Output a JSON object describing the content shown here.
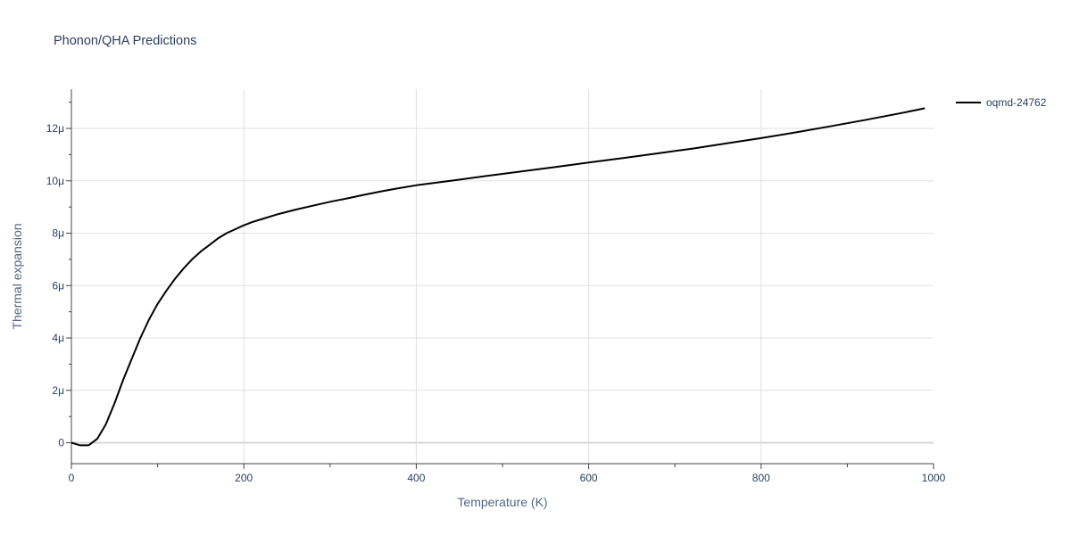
{
  "chart_data": {
    "type": "line",
    "title": "Phonon/QHA Predictions",
    "xlabel": "Temperature (K)",
    "ylabel": "Thermal expansion",
    "xlim": [
      0,
      1000
    ],
    "ylim": [
      -0.8,
      13.5
    ],
    "ylim_units": "micro (×1e-6)",
    "x_ticks": [
      0,
      200,
      400,
      600,
      800,
      1000
    ],
    "x_tick_labels": [
      "0",
      "200",
      "400",
      "600",
      "800",
      "1000"
    ],
    "y_ticks": [
      0,
      2,
      4,
      6,
      8,
      10,
      12
    ],
    "y_tick_labels": [
      "0",
      "2μ",
      "4μ",
      "6μ",
      "8μ",
      "10μ",
      "12μ"
    ],
    "grid": true,
    "legend_position": "top-right",
    "line_color": "#000000",
    "series": [
      {
        "name": "oqmd-24762",
        "x": [
          0,
          10,
          20,
          30,
          40,
          50,
          60,
          70,
          80,
          90,
          100,
          110,
          120,
          130,
          140,
          150,
          160,
          170,
          180,
          190,
          200,
          210,
          220,
          240,
          260,
          280,
          300,
          320,
          340,
          360,
          380,
          400,
          440,
          480,
          520,
          560,
          600,
          640,
          680,
          720,
          760,
          800,
          840,
          880,
          920,
          960,
          990
        ],
        "y": [
          0.0,
          -0.1,
          -0.1,
          0.15,
          0.7,
          1.5,
          2.4,
          3.2,
          4.0,
          4.7,
          5.3,
          5.8,
          6.25,
          6.65,
          7.0,
          7.3,
          7.55,
          7.8,
          8.0,
          8.15,
          8.3,
          8.43,
          8.53,
          8.73,
          8.9,
          9.05,
          9.2,
          9.33,
          9.47,
          9.6,
          9.72,
          9.83,
          10.0,
          10.18,
          10.35,
          10.52,
          10.7,
          10.87,
          11.05,
          11.23,
          11.43,
          11.63,
          11.85,
          12.08,
          12.32,
          12.57,
          12.77
        ]
      }
    ]
  }
}
